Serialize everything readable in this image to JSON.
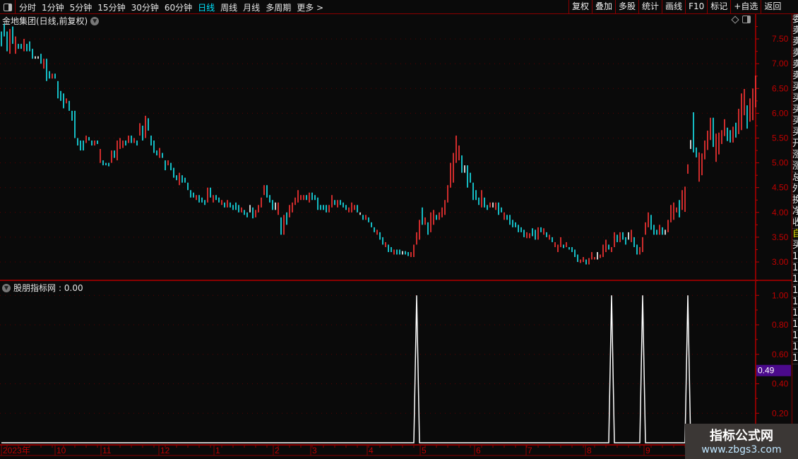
{
  "toolbar": {
    "periods": [
      "分时",
      "1分钟",
      "5分钟",
      "15分钟",
      "30分钟",
      "60分钟",
      "日线",
      "周线",
      "月线",
      "多周期",
      "更多 >"
    ],
    "active": "日线",
    "right_buttons": [
      "复权",
      "叠加",
      "多股",
      "统计",
      "画线",
      "F10",
      "标记",
      "+自选",
      "返回"
    ]
  },
  "main": {
    "title": "金地集团(日线,前复权)",
    "price_ticks": [
      "7.50",
      "7.00",
      "6.50",
      "6.00",
      "5.50",
      "5.00",
      "4.50",
      "4.00",
      "3.50",
      "3.00"
    ]
  },
  "indicator": {
    "name": "股朋指标网",
    "value": ": 0.00",
    "ticks": [
      "1.00",
      "0.80",
      "0.60",
      "0.40",
      "0.20"
    ],
    "cursor_value": "0.49",
    "cursor_color": "#4b0a8c"
  },
  "time_axis": [
    "2023年",
    "10",
    "11",
    "12",
    "1",
    "2",
    "3",
    "4",
    "5",
    "6",
    "7",
    "8",
    "9"
  ],
  "right_panel": {
    "items": [
      "委",
      "卖",
      "卖",
      "卖",
      "卖",
      "卖",
      "买",
      "买",
      "买",
      "买",
      "买",
      "开",
      "涨",
      "涨",
      "总",
      "外",
      "换",
      "净",
      "收",
      "自",
      "买",
      "1",
      "1",
      "1",
      "1",
      "1",
      "1",
      "1",
      "1",
      "1",
      "1"
    ]
  },
  "watermark": {
    "title": "指标公式网",
    "url": "www.zbgs3.com"
  },
  "colors": {
    "up": "#ff3535",
    "down": "#18e8f2",
    "flat": "#ffffff",
    "axis": "#c00000",
    "grid": "#5a0000"
  },
  "chart_data": {
    "type": "bar",
    "bars_format": "[high,low,direction(1 up,-1 down,0 flat)]",
    "ylim": [
      2.9,
      7.85
    ],
    "bars": [
      [
        7.65,
        7.35,
        -1
      ],
      [
        7.8,
        7.55,
        -1
      ],
      [
        7.65,
        7.25,
        -1
      ],
      [
        7.7,
        7.2,
        1
      ],
      [
        7.75,
        7.4,
        -1
      ],
      [
        7.55,
        7.2,
        1
      ],
      [
        7.4,
        7.3,
        -1
      ],
      [
        7.4,
        7.3,
        -1
      ],
      [
        7.5,
        7.25,
        1
      ],
      [
        7.4,
        7.25,
        -1
      ],
      [
        7.45,
        7.25,
        -1
      ],
      [
        7.3,
        7.1,
        -1
      ],
      [
        7.15,
        7.1,
        0
      ],
      [
        7.15,
        7.1,
        0
      ],
      [
        7.2,
        7.0,
        -1
      ],
      [
        7.1,
        6.9,
        1
      ],
      [
        7.1,
        6.65,
        -1
      ],
      [
        6.85,
        6.7,
        -1
      ],
      [
        6.8,
        6.7,
        1
      ],
      [
        6.8,
        6.7,
        -1
      ],
      [
        6.65,
        6.3,
        -1
      ],
      [
        6.45,
        6.25,
        -1
      ],
      [
        6.4,
        6.1,
        -1
      ],
      [
        6.3,
        6.2,
        1
      ],
      [
        6.25,
        6.05,
        -1
      ],
      [
        6.05,
        5.85,
        -1
      ],
      [
        6.05,
        5.5,
        -1
      ],
      [
        5.5,
        5.35,
        -1
      ],
      [
        5.45,
        5.25,
        -1
      ],
      [
        5.45,
        5.25,
        -1
      ],
      [
        5.55,
        5.4,
        1
      ],
      [
        5.52,
        5.45,
        -1
      ],
      [
        5.45,
        5.35,
        -1
      ],
      [
        5.45,
        5.35,
        1
      ],
      [
        5.45,
        5.38,
        -1
      ],
      [
        5.28,
        5.0,
        1
      ],
      [
        5.05,
        4.95,
        -1
      ],
      [
        5.0,
        4.95,
        -1
      ],
      [
        5.0,
        4.93,
        -1
      ],
      [
        5.25,
        5.0,
        1
      ],
      [
        5.25,
        5.1,
        -1
      ],
      [
        5.45,
        5.05,
        1
      ],
      [
        5.5,
        5.28,
        1
      ],
      [
        5.45,
        5.3,
        1
      ],
      [
        5.45,
        5.35,
        -1
      ],
      [
        5.55,
        5.4,
        1
      ],
      [
        5.55,
        5.4,
        -1
      ],
      [
        5.5,
        5.4,
        1
      ],
      [
        5.45,
        5.35,
        -1
      ],
      [
        5.8,
        5.55,
        1
      ],
      [
        5.75,
        5.45,
        -1
      ],
      [
        5.95,
        5.5,
        1
      ],
      [
        5.9,
        5.65,
        -1
      ],
      [
        5.55,
        5.35,
        -1
      ],
      [
        5.45,
        5.2,
        -1
      ],
      [
        5.25,
        5.15,
        -1
      ],
      [
        5.3,
        5.1,
        1
      ],
      [
        5.2,
        5.1,
        -1
      ],
      [
        5.05,
        4.85,
        -1
      ],
      [
        5.05,
        4.95,
        1
      ],
      [
        5.0,
        4.85,
        -1
      ],
      [
        4.9,
        4.7,
        -1
      ],
      [
        4.75,
        4.65,
        -1
      ],
      [
        4.8,
        4.55,
        1
      ],
      [
        4.75,
        4.6,
        -1
      ],
      [
        4.7,
        4.6,
        -1
      ],
      [
        4.6,
        4.45,
        -1
      ],
      [
        4.45,
        4.3,
        -1
      ],
      [
        4.4,
        4.3,
        -1
      ],
      [
        4.35,
        4.25,
        1
      ],
      [
        4.35,
        4.2,
        -1
      ],
      [
        4.3,
        4.2,
        -1
      ],
      [
        4.25,
        4.15,
        -1
      ],
      [
        4.5,
        4.2,
        1
      ],
      [
        4.5,
        4.3,
        -1
      ],
      [
        4.35,
        4.2,
        1
      ],
      [
        4.35,
        4.25,
        -1
      ],
      [
        4.3,
        4.2,
        -1
      ],
      [
        4.25,
        4.15,
        1
      ],
      [
        4.2,
        4.1,
        -1
      ],
      [
        4.25,
        4.1,
        1
      ],
      [
        4.2,
        4.1,
        -1
      ],
      [
        4.15,
        4.05,
        -1
      ],
      [
        4.2,
        4.05,
        -1
      ],
      [
        4.15,
        4.0,
        -1
      ],
      [
        4.1,
        4.0,
        1
      ],
      [
        4.05,
        3.95,
        -1
      ],
      [
        4.0,
        3.9,
        -1
      ],
      [
        4.15,
        4.0,
        0
      ],
      [
        4.1,
        3.88,
        -1
      ],
      [
        4.05,
        3.9,
        1
      ],
      [
        4.15,
        4.0,
        1
      ],
      [
        4.3,
        4.1,
        1
      ],
      [
        4.55,
        4.35,
        1
      ],
      [
        4.55,
        4.3,
        -1
      ],
      [
        4.35,
        4.2,
        -1
      ],
      [
        4.25,
        4.05,
        -1
      ],
      [
        4.2,
        4.05,
        0
      ],
      [
        4.2,
        3.95,
        1
      ],
      [
        3.9,
        3.55,
        -1
      ],
      [
        3.95,
        3.55,
        1
      ],
      [
        4.0,
        3.75,
        -1
      ],
      [
        4.15,
        3.9,
        1
      ],
      [
        4.2,
        4.0,
        1
      ],
      [
        4.3,
        4.15,
        1
      ],
      [
        4.45,
        4.2,
        1
      ],
      [
        4.35,
        4.25,
        1
      ],
      [
        4.35,
        4.25,
        1
      ],
      [
        4.35,
        4.25,
        -1
      ],
      [
        4.4,
        4.2,
        1
      ],
      [
        4.4,
        4.25,
        -1
      ],
      [
        4.35,
        4.25,
        -1
      ],
      [
        4.3,
        4.05,
        -1
      ],
      [
        4.15,
        4.05,
        -1
      ],
      [
        4.15,
        4.05,
        -1
      ],
      [
        4.15,
        4.0,
        -1
      ],
      [
        4.15,
        4.0,
        1
      ],
      [
        4.35,
        4.1,
        1
      ],
      [
        4.25,
        4.15,
        -1
      ],
      [
        4.25,
        4.1,
        1
      ],
      [
        4.25,
        4.15,
        -1
      ],
      [
        4.2,
        4.1,
        -1
      ],
      [
        4.15,
        4.05,
        -1
      ],
      [
        4.1,
        4.0,
        1
      ],
      [
        4.2,
        4.0,
        1
      ],
      [
        4.15,
        4.05,
        1
      ],
      [
        4.15,
        4.0,
        -1
      ],
      [
        4.0,
        3.95,
        0
      ],
      [
        3.95,
        3.85,
        -1
      ],
      [
        3.95,
        3.85,
        1
      ],
      [
        3.9,
        3.8,
        -1
      ],
      [
        3.8,
        3.7,
        -1
      ],
      [
        3.7,
        3.6,
        -1
      ],
      [
        3.65,
        3.55,
        1
      ],
      [
        3.6,
        3.45,
        -1
      ],
      [
        3.5,
        3.35,
        -1
      ],
      [
        3.4,
        3.3,
        1
      ],
      [
        3.35,
        3.2,
        -1
      ],
      [
        3.3,
        3.2,
        -1
      ],
      [
        3.25,
        3.15,
        1
      ],
      [
        3.25,
        3.15,
        -1
      ],
      [
        3.25,
        3.15,
        -1
      ],
      [
        3.22,
        3.15,
        0
      ],
      [
        3.22,
        3.15,
        -1
      ],
      [
        3.2,
        3.12,
        -1
      ],
      [
        3.2,
        3.1,
        1
      ],
      [
        3.35,
        3.1,
        1
      ],
      [
        3.6,
        3.35,
        1
      ],
      [
        3.85,
        3.45,
        1
      ],
      [
        4.1,
        3.75,
        -1
      ],
      [
        3.9,
        3.75,
        1
      ],
      [
        3.8,
        3.55,
        -1
      ],
      [
        4.0,
        3.6,
        1
      ],
      [
        4.05,
        3.75,
        1
      ],
      [
        3.95,
        3.85,
        -1
      ],
      [
        4.0,
        3.85,
        1
      ],
      [
        4.1,
        3.9,
        1
      ],
      [
        4.25,
        3.95,
        1
      ],
      [
        4.55,
        4.2,
        1
      ],
      [
        5.0,
        4.5,
        1
      ],
      [
        5.2,
        4.6,
        1
      ],
      [
        5.55,
        5.0,
        1
      ],
      [
        5.35,
        5.05,
        1
      ],
      [
        5.15,
        4.8,
        -1
      ],
      [
        4.95,
        4.8,
        0
      ],
      [
        4.95,
        4.5,
        -1
      ],
      [
        4.8,
        4.6,
        -1
      ],
      [
        4.6,
        4.25,
        -1
      ],
      [
        4.45,
        4.25,
        -1
      ],
      [
        4.3,
        4.15,
        -1
      ],
      [
        4.45,
        4.1,
        1
      ],
      [
        4.3,
        4.1,
        -1
      ],
      [
        4.15,
        4.05,
        -1
      ],
      [
        4.2,
        4.1,
        1
      ],
      [
        4.2,
        4.1,
        0
      ],
      [
        4.2,
        4.05,
        1
      ],
      [
        4.2,
        3.95,
        -1
      ],
      [
        4.1,
        4.0,
        -1
      ],
      [
        4.0,
        3.85,
        1
      ],
      [
        3.95,
        3.85,
        -1
      ],
      [
        3.95,
        3.75,
        -1
      ],
      [
        3.85,
        3.7,
        -1
      ],
      [
        3.8,
        3.7,
        -1
      ],
      [
        3.75,
        3.6,
        -1
      ],
      [
        3.7,
        3.6,
        -1
      ],
      [
        3.65,
        3.5,
        -1
      ],
      [
        3.6,
        3.48,
        1
      ],
      [
        3.58,
        3.48,
        1
      ],
      [
        3.68,
        3.52,
        -1
      ],
      [
        3.65,
        3.45,
        -1
      ],
      [
        3.7,
        3.45,
        1
      ],
      [
        3.7,
        3.6,
        -1
      ],
      [
        3.68,
        3.55,
        1
      ],
      [
        3.6,
        3.5,
        -1
      ],
      [
        3.55,
        3.45,
        1
      ],
      [
        3.5,
        3.4,
        -1
      ],
      [
        3.4,
        3.3,
        1
      ],
      [
        3.35,
        3.2,
        1
      ],
      [
        3.5,
        3.3,
        1
      ],
      [
        3.35,
        3.28,
        -1
      ],
      [
        3.4,
        3.3,
        1
      ],
      [
        3.3,
        3.25,
        -1
      ],
      [
        3.3,
        3.2,
        -1
      ],
      [
        3.25,
        3.1,
        -1
      ],
      [
        3.15,
        3.0,
        -1
      ],
      [
        3.05,
        2.98,
        1
      ],
      [
        3.1,
        3.0,
        1
      ],
      [
        3.05,
        2.95,
        -1
      ],
      [
        3.08,
        2.95,
        1
      ],
      [
        3.2,
        3.05,
        1
      ],
      [
        3.1,
        3.05,
        1
      ],
      [
        3.2,
        3.05,
        0
      ],
      [
        3.15,
        3.08,
        1
      ],
      [
        3.35,
        3.1,
        1
      ],
      [
        3.45,
        3.2,
        1
      ],
      [
        3.35,
        3.25,
        -1
      ],
      [
        3.3,
        3.2,
        1
      ],
      [
        3.6,
        3.3,
        1
      ],
      [
        3.55,
        3.4,
        -1
      ],
      [
        3.6,
        3.4,
        1
      ],
      [
        3.6,
        3.45,
        -1
      ],
      [
        3.5,
        3.35,
        -1
      ],
      [
        3.6,
        3.45,
        0
      ],
      [
        3.65,
        3.4,
        1
      ],
      [
        3.5,
        3.3,
        -1
      ],
      [
        3.35,
        3.15,
        -1
      ],
      [
        3.3,
        3.15,
        1
      ],
      [
        3.5,
        3.2,
        1
      ],
      [
        3.8,
        3.55,
        1
      ],
      [
        4.0,
        3.7,
        1
      ],
      [
        3.95,
        3.65,
        -1
      ],
      [
        3.75,
        3.55,
        -1
      ],
      [
        3.65,
        3.55,
        -1
      ],
      [
        3.75,
        3.55,
        1
      ],
      [
        3.7,
        3.55,
        -1
      ],
      [
        3.65,
        3.55,
        0
      ],
      [
        3.85,
        3.6,
        1
      ],
      [
        4.15,
        3.8,
        1
      ],
      [
        4.2,
        3.85,
        1
      ],
      [
        4.1,
        4.0,
        1
      ],
      [
        4.25,
        3.9,
        -1
      ],
      [
        4.45,
        4.05,
        1
      ],
      [
        4.52,
        4.01,
        1
      ],
      [
        4.97,
        4.78,
        1
      ],
      [
        5.46,
        5.28,
        0
      ],
      [
        6.02,
        5.21,
        -1
      ],
      [
        5.31,
        5.11,
        -1
      ],
      [
        5.21,
        4.62,
        1
      ],
      [
        5.19,
        4.75,
        1
      ],
      [
        5.45,
        5.07,
        1
      ],
      [
        5.65,
        5.26,
        1
      ],
      [
        5.91,
        5.46,
        1
      ],
      [
        5.91,
        5.32,
        -1
      ],
      [
        5.59,
        5.02,
        1
      ],
      [
        5.61,
        5.17,
        1
      ],
      [
        5.66,
        5.38,
        1
      ],
      [
        5.88,
        5.54,
        1
      ],
      [
        5.71,
        5.44,
        -1
      ],
      [
        5.66,
        5.41,
        -1
      ],
      [
        5.73,
        5.41,
        1
      ],
      [
        5.81,
        5.51,
        -1
      ],
      [
        6.09,
        5.58,
        1
      ],
      [
        6.4,
        5.66,
        1
      ],
      [
        6.49,
        5.96,
        1
      ],
      [
        6.16,
        5.69,
        -1
      ],
      [
        6.3,
        5.83,
        1
      ],
      [
        6.5,
        5.86,
        1
      ],
      [
        6.76,
        6.12,
        1
      ]
    ],
    "indicator_signal_bars": [
      147,
      216,
      227,
      243
    ],
    "indicator_ylim": [
      0,
      1.0
    ]
  }
}
